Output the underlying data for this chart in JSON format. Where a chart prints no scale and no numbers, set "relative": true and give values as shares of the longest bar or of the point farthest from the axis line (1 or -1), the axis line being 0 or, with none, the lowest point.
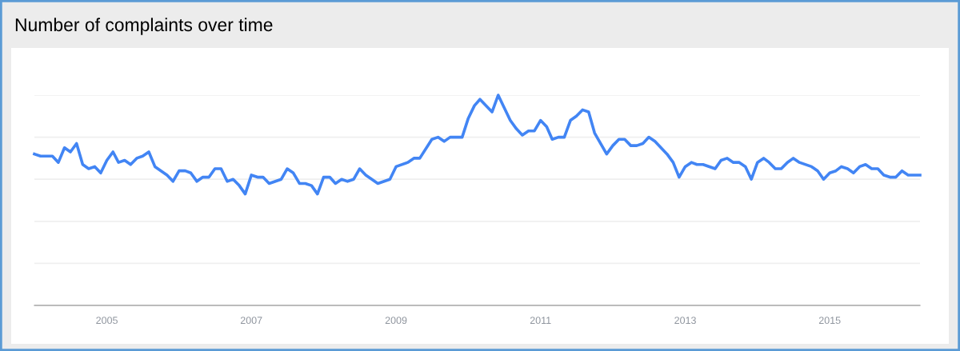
{
  "chart_data": {
    "type": "line",
    "title": "Number of complaints over time",
    "relative": true,
    "grid": "y",
    "tick_labels": "x",
    "marker": "none",
    "line_style": "solid",
    "xlim": [
      "2004-01",
      "2016-04"
    ],
    "xticks": [
      {
        "value": "2005-01",
        "label": "2005"
      },
      {
        "value": "2007-01",
        "label": "2007"
      },
      {
        "value": "2009-01",
        "label": "2009"
      },
      {
        "value": "2011-01",
        "label": "2011"
      },
      {
        "value": "2013-01",
        "label": "2013"
      },
      {
        "value": "2015-01",
        "label": "2015"
      }
    ],
    "series": [
      {
        "color": "#4285f4",
        "x": [
          "2004-01",
          "2004-02",
          "2004-04",
          "2004-05",
          "2004-06",
          "2004-07",
          "2004-08",
          "2004-09",
          "2004-10",
          "2004-11",
          "2004-12",
          "2005-01",
          "2005-02",
          "2005-03",
          "2005-04",
          "2005-05",
          "2005-06",
          "2005-07",
          "2005-08",
          "2005-09",
          "2005-11",
          "2005-12",
          "2006-01",
          "2006-02",
          "2006-03",
          "2006-04",
          "2006-05",
          "2006-06",
          "2006-07",
          "2006-08",
          "2006-09",
          "2006-10",
          "2006-11",
          "2006-12",
          "2007-01",
          "2007-02",
          "2007-03",
          "2007-04",
          "2007-06",
          "2007-07",
          "2007-08",
          "2007-09",
          "2007-10",
          "2007-11",
          "2007-12",
          "2008-01",
          "2008-02",
          "2008-03",
          "2008-04",
          "2008-05",
          "2008-06",
          "2008-07",
          "2008-08",
          "2008-10",
          "2008-12",
          "2009-01",
          "2009-03",
          "2009-04",
          "2009-05",
          "2009-07",
          "2009-08",
          "2009-09",
          "2009-10",
          "2009-12",
          "2010-01",
          "2010-02",
          "2010-03",
          "2010-05",
          "2010-06",
          "2010-08",
          "2010-09",
          "2010-10",
          "2010-11",
          "2010-12",
          "2011-01",
          "2011-02",
          "2011-03",
          "2011-04",
          "2011-05",
          "2011-06",
          "2011-07",
          "2011-08",
          "2011-09",
          "2011-10",
          "2011-12",
          "2012-01",
          "2012-02",
          "2012-03",
          "2012-04",
          "2012-05",
          "2012-06",
          "2012-07",
          "2012-08",
          "2012-10",
          "2012-11",
          "2012-12",
          "2013-01",
          "2013-02",
          "2013-03",
          "2013-04",
          "2013-06",
          "2013-07",
          "2013-08",
          "2013-09",
          "2013-10",
          "2013-11",
          "2013-12",
          "2014-01",
          "2014-02",
          "2014-03",
          "2014-04",
          "2014-05",
          "2014-06",
          "2014-07",
          "2014-08",
          "2014-10",
          "2014-11",
          "2014-12",
          "2015-01",
          "2015-02",
          "2015-03",
          "2015-04",
          "2015-05",
          "2015-06",
          "2015-07",
          "2015-08",
          "2015-09",
          "2015-10",
          "2015-11",
          "2015-12",
          "2016-01",
          "2016-02",
          "2016-04"
        ],
        "values": [
          0.72,
          0.71,
          0.71,
          0.68,
          0.75,
          0.73,
          0.77,
          0.67,
          0.65,
          0.66,
          0.63,
          0.69,
          0.73,
          0.68,
          0.69,
          0.67,
          0.7,
          0.71,
          0.73,
          0.66,
          0.62,
          0.59,
          0.64,
          0.64,
          0.63,
          0.59,
          0.61,
          0.61,
          0.65,
          0.65,
          0.59,
          0.6,
          0.57,
          0.53,
          0.62,
          0.61,
          0.61,
          0.58,
          0.6,
          0.65,
          0.63,
          0.58,
          0.58,
          0.57,
          0.53,
          0.61,
          0.61,
          0.58,
          0.6,
          0.59,
          0.6,
          0.65,
          0.62,
          0.58,
          0.6,
          0.66,
          0.68,
          0.7,
          0.7,
          0.79,
          0.8,
          0.78,
          0.8,
          0.8,
          0.89,
          0.95,
          0.98,
          0.92,
          1.0,
          0.88,
          0.84,
          0.81,
          0.83,
          0.83,
          0.88,
          0.85,
          0.79,
          0.8,
          0.8,
          0.88,
          0.9,
          0.93,
          0.92,
          0.82,
          0.72,
          0.76,
          0.79,
          0.79,
          0.76,
          0.76,
          0.77,
          0.8,
          0.78,
          0.72,
          0.68,
          0.61,
          0.66,
          0.68,
          0.67,
          0.67,
          0.65,
          0.69,
          0.7,
          0.68,
          0.68,
          0.66,
          0.6,
          0.68,
          0.7,
          0.68,
          0.65,
          0.65,
          0.68,
          0.7,
          0.68,
          0.66,
          0.64,
          0.6,
          0.63,
          0.64,
          0.66,
          0.65,
          0.63,
          0.66,
          0.67,
          0.65,
          0.65,
          0.62,
          0.61,
          0.61,
          0.64,
          0.62,
          0.62
        ]
      }
    ]
  }
}
